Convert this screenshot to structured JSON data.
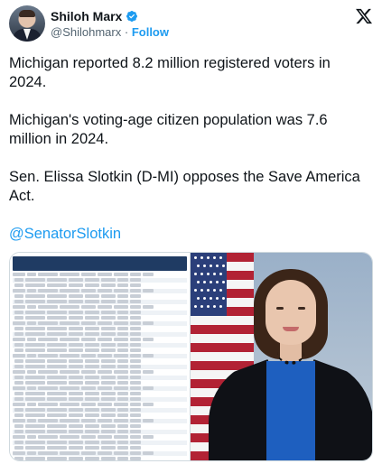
{
  "author": {
    "name": "Shiloh Marx",
    "handle": "@Shilohmarx",
    "separator": "·",
    "follow_label": "Follow"
  },
  "icons": {
    "verified": "verified-badge-icon",
    "platform": "x-logo-icon"
  },
  "colors": {
    "accent": "#1d9bf0",
    "text": "#0f1419",
    "muted": "#536471"
  },
  "post": {
    "paragraphs": [
      "Michigan reported 8.2 million registered voters in 2024.",
      "Michigan's voting-age citizen population was 7.6 million in 2024.",
      "Sen. Elissa Slotkin (D-MI) opposes the Save America Act."
    ],
    "mention": "@SenatorSlotkin"
  }
}
